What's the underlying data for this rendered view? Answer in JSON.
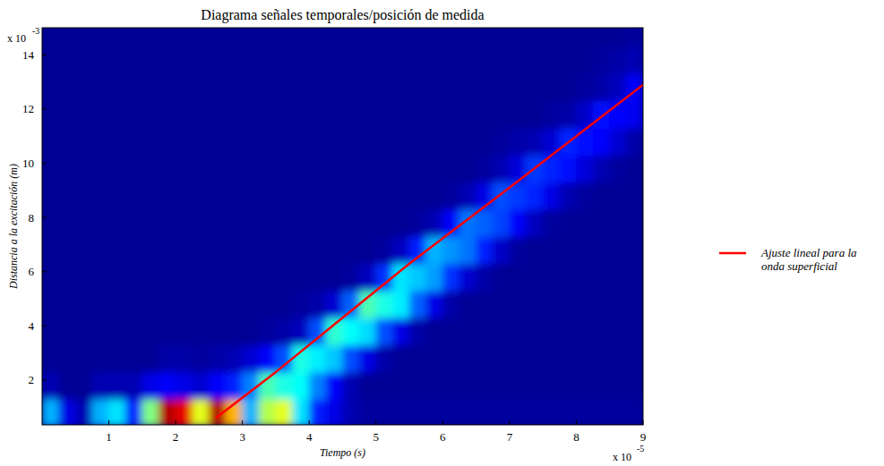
{
  "chart_data": {
    "type": "heatmap",
    "title": "Diagrama señales temporales/posición de medida",
    "x_label": "Tiempo (s)",
    "y_label": "Distancia a la excitación (m)",
    "x_multiplier": "x 10",
    "x_exponent": "-5",
    "y_multiplier": "x 10",
    "y_exponent": "-3",
    "xlim": [
      0,
      9e-05
    ],
    "ylim": [
      0.00035,
      0.015
    ],
    "xticks": [
      {
        "value": 1e-05,
        "label": "1"
      },
      {
        "value": 2e-05,
        "label": "2"
      },
      {
        "value": 3e-05,
        "label": "3"
      },
      {
        "value": 4e-05,
        "label": "4"
      },
      {
        "value": 5e-05,
        "label": "5"
      },
      {
        "value": 6e-05,
        "label": "6"
      },
      {
        "value": 7e-05,
        "label": "7"
      },
      {
        "value": 8e-05,
        "label": "8"
      },
      {
        "value": 9e-05,
        "label": "9"
      }
    ],
    "yticks": [
      {
        "value": 0.002,
        "label": "2"
      },
      {
        "value": 0.004,
        "label": "4"
      },
      {
        "value": 0.006,
        "label": "6"
      },
      {
        "value": 0.008,
        "label": "8"
      },
      {
        "value": 0.01,
        "label": "10"
      },
      {
        "value": 0.012,
        "label": "12"
      },
      {
        "value": 0.014,
        "label": "14"
      }
    ],
    "legend": "right",
    "heatmap": {
      "color_range": [
        0,
        1
      ],
      "x": [
        1.25e-06,
        3.75e-06,
        6.25e-06,
        8.75e-06,
        1.125e-05,
        1.375e-05,
        1.625e-05,
        1.875e-05,
        2.125e-05,
        2.375e-05,
        2.625e-05,
        2.875e-05,
        3.125e-05,
        3.375e-05,
        3.625e-05,
        3.875e-05,
        4.125e-05,
        4.375e-05,
        4.625e-05,
        4.875e-05,
        5.125e-05,
        5.375e-05,
        5.625e-05,
        5.875e-05,
        6.125e-05,
        6.375e-05,
        6.625e-05,
        6.875e-05,
        7.125e-05,
        7.375e-05,
        7.625e-05,
        7.875e-05,
        8.125e-05,
        8.375e-05,
        8.625e-05,
        8.875e-05
      ],
      "y": [
        0.0008,
        0.0018,
        0.0028,
        0.0038,
        0.0048,
        0.0058,
        0.0068,
        0.0078,
        0.0088,
        0.0098,
        0.0108,
        0.0118,
        0.0128,
        0.0138,
        0.0148
      ],
      "cells": [
        [
          0.3,
          0.1,
          0.05,
          0.3,
          0.35,
          0.15,
          0.5,
          0.95,
          0.9,
          0.6,
          0.95,
          0.7,
          0.3,
          0.55,
          0.6,
          0.35,
          0.15,
          0.1,
          0.05,
          0.03,
          0.03,
          0.03,
          0.03,
          0.03,
          0.03,
          0.03,
          0.03,
          0.03,
          0.03,
          0.03,
          0.03,
          0.03,
          0.03,
          0.03,
          0.03,
          0.03
        ],
        [
          0.05,
          0.02,
          0.02,
          0.05,
          0.05,
          0.05,
          0.1,
          0.12,
          0.1,
          0.08,
          0.12,
          0.15,
          0.25,
          0.45,
          0.4,
          0.38,
          0.25,
          0.12,
          0.05,
          0.02,
          0.02,
          0.02,
          0.02,
          0.02,
          0.02,
          0.02,
          0.02,
          0.02,
          0.02,
          0.02,
          0.02,
          0.02,
          0.02,
          0.02,
          0.02,
          0.02
        ],
        [
          0.02,
          0.02,
          0.02,
          0.02,
          0.02,
          0.02,
          0.02,
          0.04,
          0.04,
          0.03,
          0.04,
          0.05,
          0.08,
          0.12,
          0.2,
          0.4,
          0.36,
          0.32,
          0.2,
          0.1,
          0.04,
          0.02,
          0.02,
          0.02,
          0.02,
          0.02,
          0.02,
          0.02,
          0.02,
          0.02,
          0.02,
          0.02,
          0.02,
          0.02,
          0.02,
          0.02
        ],
        [
          0.02,
          0.02,
          0.02,
          0.02,
          0.02,
          0.02,
          0.02,
          0.02,
          0.02,
          0.02,
          0.02,
          0.02,
          0.02,
          0.03,
          0.04,
          0.06,
          0.2,
          0.42,
          0.38,
          0.34,
          0.2,
          0.1,
          0.04,
          0.02,
          0.02,
          0.02,
          0.02,
          0.02,
          0.02,
          0.02,
          0.02,
          0.02,
          0.02,
          0.02,
          0.02,
          0.02
        ],
        [
          0.02,
          0.02,
          0.02,
          0.02,
          0.02,
          0.02,
          0.02,
          0.02,
          0.02,
          0.02,
          0.02,
          0.02,
          0.02,
          0.02,
          0.02,
          0.03,
          0.04,
          0.08,
          0.22,
          0.45,
          0.4,
          0.36,
          0.22,
          0.1,
          0.04,
          0.02,
          0.02,
          0.02,
          0.02,
          0.02,
          0.02,
          0.02,
          0.02,
          0.02,
          0.02,
          0.02
        ],
        [
          0.02,
          0.02,
          0.02,
          0.02,
          0.02,
          0.02,
          0.02,
          0.02,
          0.02,
          0.02,
          0.02,
          0.02,
          0.02,
          0.02,
          0.02,
          0.02,
          0.02,
          0.02,
          0.03,
          0.06,
          0.17,
          0.35,
          0.32,
          0.28,
          0.17,
          0.08,
          0.04,
          0.02,
          0.02,
          0.02,
          0.02,
          0.02,
          0.02,
          0.02,
          0.02,
          0.02
        ],
        [
          0.02,
          0.02,
          0.02,
          0.02,
          0.02,
          0.02,
          0.02,
          0.02,
          0.02,
          0.02,
          0.02,
          0.02,
          0.02,
          0.02,
          0.02,
          0.02,
          0.02,
          0.02,
          0.02,
          0.02,
          0.03,
          0.06,
          0.15,
          0.3,
          0.27,
          0.24,
          0.15,
          0.07,
          0.03,
          0.02,
          0.02,
          0.02,
          0.02,
          0.02,
          0.02,
          0.02
        ],
        [
          0.02,
          0.02,
          0.02,
          0.02,
          0.02,
          0.02,
          0.02,
          0.02,
          0.02,
          0.02,
          0.02,
          0.02,
          0.02,
          0.02,
          0.02,
          0.02,
          0.02,
          0.02,
          0.02,
          0.02,
          0.02,
          0.02,
          0.03,
          0.05,
          0.12,
          0.24,
          0.22,
          0.19,
          0.12,
          0.06,
          0.03,
          0.02,
          0.02,
          0.02,
          0.02,
          0.02
        ],
        [
          0.02,
          0.02,
          0.02,
          0.02,
          0.02,
          0.02,
          0.02,
          0.02,
          0.02,
          0.02,
          0.02,
          0.02,
          0.02,
          0.02,
          0.02,
          0.02,
          0.02,
          0.02,
          0.02,
          0.02,
          0.02,
          0.02,
          0.02,
          0.02,
          0.03,
          0.05,
          0.1,
          0.2,
          0.18,
          0.16,
          0.1,
          0.05,
          0.03,
          0.02,
          0.02,
          0.02
        ],
        [
          0.02,
          0.02,
          0.02,
          0.02,
          0.02,
          0.02,
          0.02,
          0.02,
          0.02,
          0.02,
          0.02,
          0.02,
          0.02,
          0.02,
          0.02,
          0.02,
          0.02,
          0.02,
          0.02,
          0.02,
          0.02,
          0.02,
          0.02,
          0.02,
          0.02,
          0.02,
          0.03,
          0.05,
          0.09,
          0.18,
          0.16,
          0.14,
          0.09,
          0.05,
          0.03,
          0.02
        ],
        [
          0.02,
          0.02,
          0.02,
          0.02,
          0.02,
          0.02,
          0.02,
          0.02,
          0.02,
          0.02,
          0.02,
          0.02,
          0.02,
          0.02,
          0.02,
          0.02,
          0.02,
          0.02,
          0.02,
          0.02,
          0.02,
          0.02,
          0.02,
          0.02,
          0.02,
          0.02,
          0.02,
          0.03,
          0.04,
          0.05,
          0.08,
          0.16,
          0.14,
          0.13,
          0.08,
          0.04
        ],
        [
          0.02,
          0.02,
          0.02,
          0.02,
          0.02,
          0.02,
          0.02,
          0.02,
          0.02,
          0.02,
          0.02,
          0.02,
          0.02,
          0.02,
          0.02,
          0.02,
          0.02,
          0.02,
          0.02,
          0.02,
          0.02,
          0.02,
          0.02,
          0.02,
          0.02,
          0.02,
          0.02,
          0.02,
          0.02,
          0.02,
          0.03,
          0.04,
          0.07,
          0.14,
          0.13,
          0.11
        ],
        [
          0.02,
          0.02,
          0.02,
          0.02,
          0.02,
          0.02,
          0.02,
          0.02,
          0.02,
          0.02,
          0.02,
          0.02,
          0.02,
          0.02,
          0.02,
          0.02,
          0.02,
          0.02,
          0.02,
          0.02,
          0.02,
          0.02,
          0.02,
          0.02,
          0.02,
          0.02,
          0.02,
          0.02,
          0.02,
          0.02,
          0.02,
          0.02,
          0.03,
          0.04,
          0.06,
          0.12
        ],
        [
          0.02,
          0.02,
          0.02,
          0.02,
          0.02,
          0.02,
          0.02,
          0.02,
          0.02,
          0.02,
          0.02,
          0.02,
          0.02,
          0.02,
          0.02,
          0.02,
          0.02,
          0.02,
          0.02,
          0.02,
          0.02,
          0.02,
          0.02,
          0.02,
          0.02,
          0.02,
          0.02,
          0.02,
          0.02,
          0.02,
          0.02,
          0.02,
          0.02,
          0.03,
          0.04,
          0.05
        ],
        [
          0.02,
          0.02,
          0.02,
          0.02,
          0.02,
          0.02,
          0.02,
          0.02,
          0.02,
          0.02,
          0.02,
          0.02,
          0.02,
          0.02,
          0.02,
          0.02,
          0.02,
          0.02,
          0.02,
          0.02,
          0.02,
          0.02,
          0.02,
          0.02,
          0.02,
          0.02,
          0.02,
          0.02,
          0.02,
          0.02,
          0.02,
          0.02,
          0.02,
          0.02,
          0.02,
          0.03
        ]
      ]
    },
    "series": [
      {
        "name": "Ajuste lineal para la onda superficial",
        "type": "line",
        "color": "#ff0000",
        "x": [
          2.6e-05,
          3.5e-05,
          4.5e-05,
          5.5e-05,
          7e-05,
          9e-05
        ],
        "values": [
          0.0006,
          0.0023,
          0.0043,
          0.0063,
          0.0091,
          0.0129
        ]
      }
    ]
  }
}
